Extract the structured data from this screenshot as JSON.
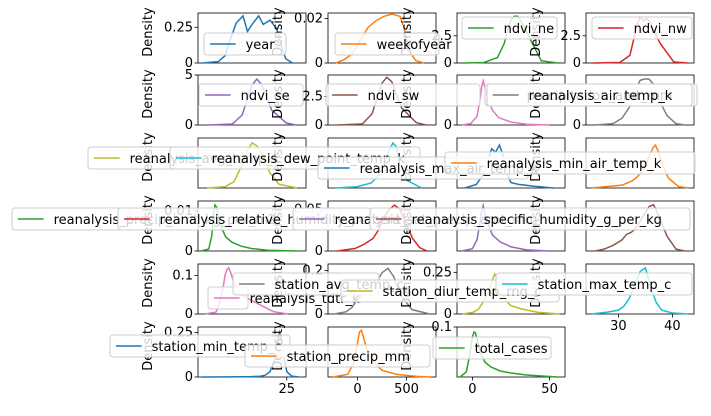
{
  "chart_data": {
    "type": "line",
    "layout_grid": "6x4",
    "ylabel": "Density",
    "legend_placement": "best",
    "panels": [
      {
        "series": {
          "name": "year",
          "color": "#1f77b4"
        },
        "xlim": [
          -12,
          36
        ],
        "ylim": [
          0,
          0.35
        ],
        "x": [
          -10,
          -3,
          0,
          2,
          5,
          8,
          10,
          12,
          15,
          17,
          20,
          23,
          25,
          27,
          30
        ],
        "y": [
          0,
          0.01,
          0.05,
          0.15,
          0.28,
          0.33,
          0.22,
          0.27,
          0.33,
          0.27,
          0.3,
          0.24,
          0.12,
          0.03,
          0
        ],
        "yticks": [
          0,
          0.25
        ],
        "xticks": []
      },
      {
        "series": {
          "name": "weekofyear",
          "color": "#ff7f0e"
        },
        "xlim": [
          -40,
          95
        ],
        "ylim": [
          0,
          0.0225
        ],
        "x": [
          -30,
          -20,
          -10,
          0,
          10,
          20,
          30,
          40,
          50,
          55,
          60,
          70,
          80
        ],
        "y": [
          0,
          0.0015,
          0.004,
          0.01,
          0.016,
          0.019,
          0.021,
          0.022,
          0.021,
          0.016,
          0.006,
          0.001,
          0
        ],
        "yticks": [
          0,
          0.02
        ],
        "xticks": []
      },
      {
        "series": {
          "name": "ndvi_ne",
          "color": "#2ca02c"
        },
        "xlim": [
          -0.7,
          0.9
        ],
        "ylim": [
          0,
          4.6
        ],
        "x": [
          -0.6,
          -0.3,
          -0.1,
          0.0,
          0.05,
          0.1,
          0.15,
          0.2,
          0.25,
          0.3,
          0.4,
          0.55,
          0.8
        ],
        "y": [
          0,
          0.05,
          0.5,
          1.8,
          3.0,
          4.0,
          4.3,
          4.3,
          3.8,
          3.3,
          2.0,
          0.2,
          0
        ],
        "yticks": [
          0,
          2.5
        ],
        "xticks": []
      },
      {
        "series": {
          "name": "ndvi_nw",
          "color": "#d62728"
        },
        "xlim": [
          -0.7,
          0.9
        ],
        "ylim": [
          0,
          4.6
        ],
        "x": [
          -0.6,
          -0.2,
          -0.05,
          0.0,
          0.05,
          0.1,
          0.15,
          0.2,
          0.25,
          0.3,
          0.4,
          0.6,
          0.8
        ],
        "y": [
          0,
          0.05,
          0.7,
          2.0,
          3.5,
          4.2,
          3.9,
          4.1,
          3.7,
          3.0,
          1.8,
          0.1,
          0
        ],
        "yticks": [
          0,
          2.5
        ],
        "xticks": []
      },
      {
        "series": {
          "name": "ndvi_se",
          "color": "#9467bd"
        },
        "xlim": [
          -0.4,
          0.7
        ],
        "ylim": [
          0,
          5
        ],
        "x": [
          -0.3,
          -0.05,
          0.05,
          0.1,
          0.15,
          0.2,
          0.25,
          0.3,
          0.35,
          0.5,
          0.6
        ],
        "y": [
          0,
          0.1,
          1.0,
          2.5,
          4.0,
          4.6,
          4.0,
          2.8,
          1.5,
          0.2,
          0
        ],
        "yticks": [
          0,
          5
        ],
        "xticks": []
      },
      {
        "series": {
          "name": "ndvi_sw",
          "color": "#8c564b"
        },
        "xlim": [
          -0.4,
          0.7
        ],
        "ylim": [
          0,
          4.4
        ],
        "x": [
          -0.3,
          -0.05,
          0.05,
          0.1,
          0.15,
          0.2,
          0.25,
          0.3,
          0.35,
          0.5,
          0.6
        ],
        "y": [
          0,
          0.1,
          1.0,
          2.4,
          3.7,
          4.2,
          3.8,
          2.6,
          1.5,
          0.2,
          0
        ],
        "yticks": [
          0,
          2.5
        ],
        "xticks": []
      },
      {
        "series": {
          "name": "precipitation_amt_mm",
          "color": "#e377c2"
        },
        "xlim": [
          -150,
          550
        ],
        "ylim": [
          0,
          0.034
        ],
        "x": [
          -120,
          -60,
          -20,
          0,
          10,
          20,
          30,
          50,
          80,
          120,
          200,
          300,
          450
        ],
        "y": [
          0,
          0.001,
          0.006,
          0.018,
          0.026,
          0.03,
          0.026,
          0.018,
          0.01,
          0.005,
          0.002,
          0.0005,
          0
        ],
        "yticks": [
          0
        ],
        "xticks": []
      },
      {
        "series": {
          "name": "reanalysis_air_temp_k",
          "color": "#7f7f7f"
        },
        "xlim": [
          292,
          304
        ],
        "ylim": [
          0,
          0.37
        ],
        "x": [
          293,
          295,
          296,
          297,
          297.5,
          298,
          298.5,
          299,
          299.5,
          300,
          301,
          302,
          303
        ],
        "y": [
          0,
          0.01,
          0.05,
          0.15,
          0.25,
          0.33,
          0.34,
          0.34,
          0.3,
          0.2,
          0.07,
          0.01,
          0
        ],
        "yticks": [
          0
        ],
        "xticks": []
      },
      {
        "series": {
          "name": "reanalysis_avg_temp_k",
          "color": "#bcbd22"
        },
        "xlim": [
          293,
          305
        ],
        "ylim": [
          0,
          0.4
        ],
        "x": [
          294,
          296,
          297,
          298,
          298.5,
          299,
          299.5,
          300,
          301,
          302,
          304
        ],
        "y": [
          0,
          0.01,
          0.05,
          0.2,
          0.3,
          0.36,
          0.34,
          0.28,
          0.12,
          0.03,
          0
        ],
        "yticks": [],
        "xticks": []
      },
      {
        "series": {
          "name": "reanalysis_dew_point_temp_k",
          "color": "#17becf"
        },
        "xlim": [
          287,
          302
        ],
        "ylim": [
          0,
          0.4
        ],
        "x": [
          288,
          291,
          293,
          294,
          295,
          295.5,
          296,
          296.5,
          297,
          298,
          300
        ],
        "y": [
          0,
          0.01,
          0.04,
          0.1,
          0.2,
          0.3,
          0.36,
          0.33,
          0.22,
          0.06,
          0
        ],
        "yticks": [],
        "xticks": []
      },
      {
        "series": {
          "name": "reanalysis_max_air_temp_k",
          "color": "#1f77b4"
        },
        "xlim": [
          290,
          318
        ],
        "ylim": [
          0,
          0.28
        ],
        "x": [
          292,
          295,
          297,
          298,
          299,
          300,
          301,
          302,
          303,
          304,
          306,
          310,
          315
        ],
        "y": [
          0,
          0.02,
          0.08,
          0.16,
          0.22,
          0.2,
          0.24,
          0.18,
          0.08,
          0.03,
          0.02,
          0.01,
          0
        ],
        "yticks": [],
        "xticks": []
      },
      {
        "series": {
          "name": "reanalysis_min_air_temp_k",
          "color": "#ff7f0e"
        },
        "xlim": [
          284,
          305
        ],
        "ylim": [
          0,
          0.35
        ],
        "x": [
          285,
          288,
          291,
          293,
          294,
          295,
          296,
          297,
          297.5,
          298,
          299,
          300,
          302,
          304
        ],
        "y": [
          0,
          0.01,
          0.02,
          0.05,
          0.08,
          0.12,
          0.2,
          0.28,
          0.3,
          0.26,
          0.15,
          0.07,
          0.01,
          0
        ],
        "yticks": [],
        "xticks": []
      },
      {
        "series": {
          "name": "reanalysis_precip_amt_kg_per_m2",
          "color": "#2ca02c"
        },
        "xlim": [
          -100,
          600
        ],
        "ylim": [
          0,
          0.0125
        ],
        "x": [
          -80,
          -30,
          -10,
          0,
          10,
          20,
          30,
          50,
          80,
          120,
          180,
          250,
          350,
          550
        ],
        "y": [
          0,
          0.0005,
          0.004,
          0.009,
          0.0115,
          0.011,
          0.009,
          0.006,
          0.0035,
          0.0022,
          0.0012,
          0.0006,
          0.0002,
          0
        ],
        "yticks": [
          0,
          0.01
        ],
        "xticks": []
      },
      {
        "series": {
          "name": "reanalysis_relative_humidity_percent",
          "color": "#d62728"
        },
        "xlim": [
          45,
          105
        ],
        "ylim": [
          0,
          0.06
        ],
        "x": [
          50,
          60,
          65,
          70,
          73,
          76,
          79,
          82,
          85,
          88,
          92,
          96,
          100
        ],
        "y": [
          0,
          0.003,
          0.008,
          0.015,
          0.025,
          0.04,
          0.05,
          0.055,
          0.05,
          0.035,
          0.015,
          0.004,
          0
        ],
        "yticks": [
          0,
          0.05
        ],
        "xticks": []
      },
      {
        "series": {
          "name": "reanalysis_sat_precip_amt_mm",
          "color": "#9467bd"
        },
        "xlim": [
          -150,
          550
        ],
        "ylim": [
          0,
          0.022
        ],
        "x": [
          -120,
          -50,
          -20,
          0,
          10,
          20,
          30,
          50,
          80,
          130,
          200,
          300,
          450
        ],
        "y": [
          0,
          0.001,
          0.005,
          0.013,
          0.018,
          0.02,
          0.017,
          0.012,
          0.007,
          0.004,
          0.0018,
          0.0005,
          0
        ],
        "yticks": [],
        "xticks": []
      },
      {
        "series": {
          "name": "reanalysis_specific_humidity_g_per_kg",
          "color": "#8c564b"
        },
        "xlim": [
          10,
          22
        ],
        "ylim": [
          0,
          0.27
        ],
        "x": [
          11,
          12,
          13,
          14,
          14.5,
          15,
          15.5,
          16,
          16.5,
          17,
          17.5,
          18,
          19,
          20,
          21
        ],
        "y": [
          0,
          0.01,
          0.03,
          0.06,
          0.09,
          0.1,
          0.12,
          0.16,
          0.2,
          0.24,
          0.25,
          0.2,
          0.08,
          0.01,
          0
        ],
        "yticks": [],
        "xticks": []
      },
      {
        "series": {
          "name": "reanalysis_tdtr_k",
          "color": "#e377c2"
        },
        "xlim": [
          -5,
          25
        ],
        "ylim": [
          0,
          0.13
        ],
        "x": [
          -3,
          0,
          1,
          2,
          2.5,
          3,
          3.5,
          4,
          5,
          6,
          8,
          10,
          13,
          16,
          20
        ],
        "y": [
          0,
          0.005,
          0.03,
          0.07,
          0.1,
          0.115,
          0.12,
          0.11,
          0.08,
          0.06,
          0.045,
          0.035,
          0.02,
          0.006,
          0
        ],
        "yticks": [
          0,
          0.1
        ],
        "xticks": []
      },
      {
        "series": {
          "name": "station_avg_temp_c",
          "color": "#7f7f7f"
        },
        "xlim": [
          18,
          36
        ],
        "ylim": [
          0,
          0.23
        ],
        "x": [
          19,
          21,
          22,
          23,
          24,
          25,
          26,
          27,
          28,
          29,
          30,
          32,
          35
        ],
        "y": [
          0,
          0.01,
          0.03,
          0.07,
          0.1,
          0.12,
          0.14,
          0.19,
          0.21,
          0.17,
          0.09,
          0.02,
          0
        ],
        "yticks": [
          0,
          0.2
        ],
        "xticks": []
      },
      {
        "series": {
          "name": "station_diur_temp_rng_c",
          "color": "#bcbd22"
        },
        "xlim": [
          0,
          20
        ],
        "ylim": [
          0,
          0.3
        ],
        "x": [
          1,
          3,
          4,
          5,
          6,
          6.5,
          7,
          7.5,
          8,
          9,
          10,
          12,
          15,
          19
        ],
        "y": [
          0,
          0.01,
          0.03,
          0.08,
          0.15,
          0.2,
          0.24,
          0.21,
          0.15,
          0.08,
          0.05,
          0.03,
          0.01,
          0
        ],
        "yticks": [
          0,
          0.25
        ],
        "xticks": []
      },
      {
        "series": {
          "name": "station_max_temp_c",
          "color": "#17becf"
        },
        "xlim": [
          24,
          44
        ],
        "ylim": [
          0,
          0.26
        ],
        "x": [
          25,
          28,
          30,
          31,
          32,
          33,
          34,
          35,
          36,
          37,
          38,
          40,
          43
        ],
        "y": [
          0,
          0.01,
          0.02,
          0.04,
          0.08,
          0.15,
          0.22,
          0.24,
          0.14,
          0.06,
          0.02,
          0.005,
          0
        ],
        "yticks": [],
        "xticks": [
          30,
          40
        ]
      },
      {
        "series": {
          "name": "station_min_temp_c",
          "color": "#1f77b4"
        },
        "xlim": [
          -12,
          33
        ],
        "ylim": [
          0,
          0.28
        ],
        "x": [
          -10,
          0,
          10,
          14,
          16,
          18,
          20,
          21,
          22,
          23,
          24,
          25,
          27,
          30
        ],
        "y": [
          0,
          0.001,
          0.002,
          0.004,
          0.01,
          0.03,
          0.1,
          0.2,
          0.25,
          0.2,
          0.1,
          0.03,
          0.005,
          0
        ],
        "yticks": [
          0,
          0.25
        ],
        "xticks": [
          25
        ]
      },
      {
        "series": {
          "name": "station_precip_mm",
          "color": "#ff7f0e"
        },
        "xlim": [
          -300,
          800
        ],
        "ylim": [
          0,
          0.015
        ],
        "x": [
          -250,
          -100,
          -40,
          0,
          20,
          40,
          60,
          100,
          150,
          250,
          400,
          600,
          750
        ],
        "y": [
          0,
          0.0008,
          0.004,
          0.01,
          0.0135,
          0.014,
          0.012,
          0.008,
          0.005,
          0.002,
          0.0008,
          0.0002,
          0
        ],
        "yticks": [],
        "xticks": [
          0,
          500
        ]
      },
      {
        "series": {
          "name": "total_cases",
          "color": "#2ca02c"
        },
        "xlim": [
          -10,
          60
        ],
        "ylim": [
          0,
          0.1
        ],
        "x": [
          -8,
          -4,
          -2,
          0,
          1,
          2,
          3,
          5,
          8,
          12,
          18,
          25,
          35,
          45,
          55
        ],
        "y": [
          0,
          0.01,
          0.04,
          0.08,
          0.09,
          0.088,
          0.075,
          0.05,
          0.03,
          0.02,
          0.012,
          0.008,
          0.004,
          0.002,
          0
        ],
        "yticks": [
          "0.1"
        ],
        "xticks": [
          0,
          50
        ]
      }
    ]
  }
}
